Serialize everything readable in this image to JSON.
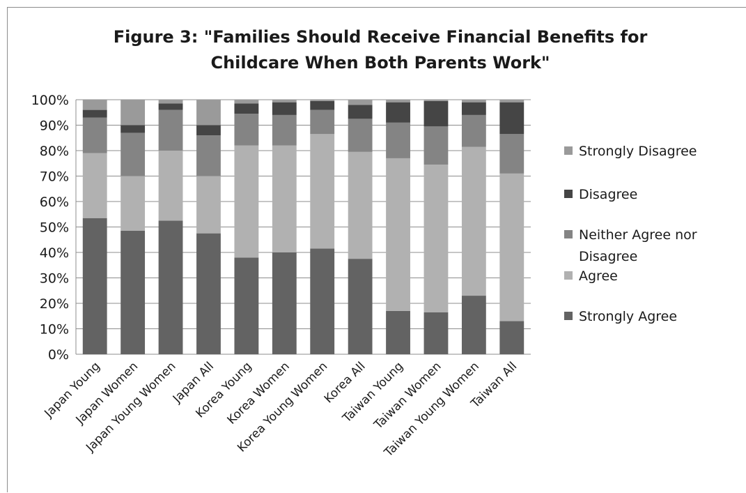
{
  "chart_data": {
    "type": "bar",
    "stacked": "percent",
    "title_lines": [
      "Figure 3: \"Families Should Receive Financial Benefits for",
      "Childcare When Both Parents Work\""
    ],
    "categories": [
      "Japan Young",
      "Japan Women",
      "Japan Young Women",
      "Japan All",
      "Korea Young",
      "Korea Women",
      "Korea Young Women",
      "Korea All",
      "Taiwan Young",
      "Taiwan Women",
      "Taiwan Young Women",
      "Taiwan All"
    ],
    "series": [
      {
        "name": "Strongly Agree",
        "color": "#636363",
        "values": [
          53.5,
          48.5,
          52.5,
          47.5,
          38,
          40,
          41.5,
          37.5,
          17,
          16.5,
          23,
          13
        ]
      },
      {
        "name": "Agree",
        "color": "#b1b1b1",
        "values": [
          25.5,
          21.5,
          27.5,
          22.5,
          44,
          42,
          45,
          42,
          60,
          58,
          58.5,
          58
        ]
      },
      {
        "name": "Neither Agree nor Disagree",
        "color": "#848484",
        "values": [
          14,
          17,
          16,
          16,
          12.5,
          12,
          9.5,
          13,
          14,
          15,
          12.5,
          15.5
        ]
      },
      {
        "name": "Disagree",
        "color": "#454545",
        "values": [
          3,
          3,
          2.5,
          4,
          4,
          5,
          3.5,
          5.5,
          8,
          10,
          5,
          12.5
        ]
      },
      {
        "name": "Strongly Disagree",
        "color": "#9a9a9a",
        "values": [
          4,
          10,
          1.5,
          10,
          1.5,
          1,
          0.5,
          2,
          1,
          0.5,
          1,
          1
        ]
      }
    ],
    "ylim": [
      0,
      100
    ],
    "y_ticks": [
      "0%",
      "10%",
      "20%",
      "30%",
      "40%",
      "50%",
      "60%",
      "70%",
      "80%",
      "90%",
      "100%"
    ],
    "legend_order": [
      "Strongly Disagree",
      "Disagree",
      "Neither Agree nor Disagree",
      "Agree",
      "Strongly Agree"
    ],
    "legend_position": "right",
    "grid": true,
    "gridline_color": "#8c8c8c"
  }
}
